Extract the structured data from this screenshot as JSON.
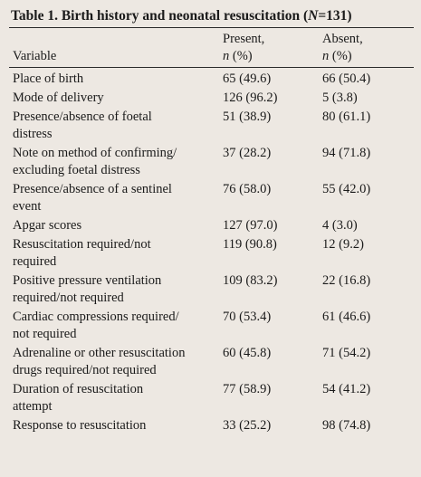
{
  "caption": {
    "prefix": "Table 1. Birth history and neonatal resuscitation (",
    "n_symbol": "N",
    "n_value": "=131)"
  },
  "columns": {
    "variable": "Variable",
    "present_line1": "Present,",
    "present_line2_n": "n",
    "present_line2_pct": " (%)",
    "absent_line1": "Absent,",
    "absent_line2_n": "n",
    "absent_line2_pct": " (%)"
  },
  "rows": [
    {
      "variable": [
        "Place of birth"
      ],
      "present": "65 (49.6)",
      "absent": "66 (50.4)"
    },
    {
      "variable": [
        "Mode of delivery"
      ],
      "present": "126 (96.2)",
      "absent": "5 (3.8)"
    },
    {
      "variable": [
        "Presence/absence of foetal",
        "distress"
      ],
      "present": "51 (38.9)",
      "absent": "80 (61.1)"
    },
    {
      "variable": [
        "Note on method of confirming/",
        "excluding foetal distress"
      ],
      "present": "37 (28.2)",
      "absent": "94 (71.8)"
    },
    {
      "variable": [
        "Presence/absence of a sentinel",
        "event"
      ],
      "present": "76 (58.0)",
      "absent": "55 (42.0)"
    },
    {
      "variable": [
        "Apgar scores"
      ],
      "present": "127 (97.0)",
      "absent": "4 (3.0)"
    },
    {
      "variable": [
        "Resuscitation required/not",
        "required"
      ],
      "present": "119 (90.8)",
      "absent": "12 (9.2)"
    },
    {
      "variable": [
        "Positive pressure ventilation",
        "required/not required"
      ],
      "present": "109 (83.2)",
      "absent": "22 (16.8)"
    },
    {
      "variable": [
        "Cardiac compressions required/",
        "not required"
      ],
      "present": "70 (53.4)",
      "absent": "61 (46.6)"
    },
    {
      "variable": [
        "Adrenaline or other resuscitation",
        "drugs required/not required"
      ],
      "present": "60 (45.8)",
      "absent": "71 (54.2)"
    },
    {
      "variable": [
        "Duration of resuscitation",
        "attempt"
      ],
      "present": "77 (58.9)",
      "absent": "54 (41.2)"
    },
    {
      "variable": [
        "Response to resuscitation"
      ],
      "present": "33 (25.2)",
      "absent": "98 (74.8)"
    }
  ]
}
